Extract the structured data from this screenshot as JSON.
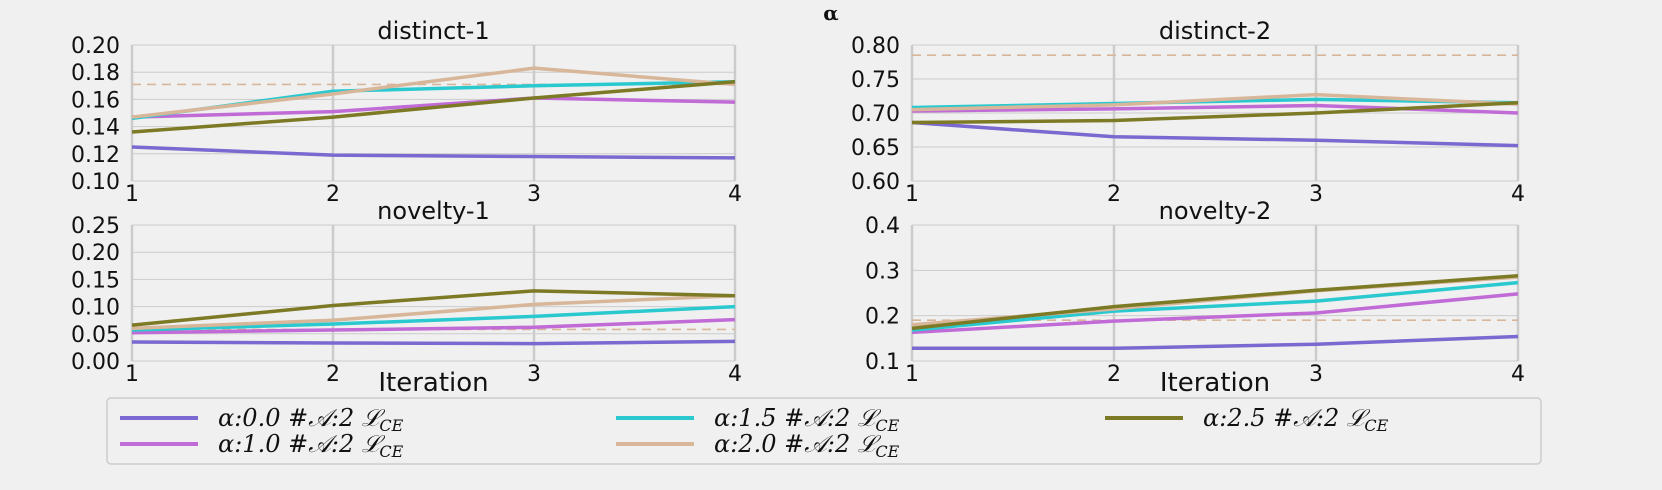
{
  "figure": {
    "suptitle": "α",
    "colors": {
      "background": "#f0f0f0",
      "grid": "#cbcbcb"
    }
  },
  "legend": {
    "placement": "bottom",
    "entries": [
      {
        "label": "α:0.0 #𝒜:2 ℒ",
        "sub": "CE",
        "color": "#7b68d0"
      },
      {
        "label": "α:1.0 #𝒜:2 ℒ",
        "sub": "CE",
        "color": "#c06bd6"
      },
      {
        "label": "α:1.5 #𝒜:2 ℒ",
        "sub": "CE",
        "color": "#29c9cf"
      },
      {
        "label": "α:2.0 #𝒜:2 ℒ",
        "sub": "CE",
        "color": "#d7b69a"
      },
      {
        "label": "α:2.5 #𝒜:2 ℒ",
        "sub": "CE",
        "color": "#7d7a25"
      }
    ]
  },
  "chart_data": [
    {
      "type": "line",
      "title": "distinct-1",
      "xlabel": "",
      "x": [
        1,
        2,
        3,
        4
      ],
      "xticks": [
        "1",
        "2",
        "3",
        "4"
      ],
      "ylim": [
        0.1,
        0.2
      ],
      "yticks": [
        "0.10",
        "0.12",
        "0.14",
        "0.16",
        "0.18",
        "0.20"
      ],
      "grid": true,
      "baseline": 0.171,
      "series": [
        {
          "name": "α:0.0 #𝒜:2 ℒCE",
          "values": [
            0.125,
            0.119,
            0.118,
            0.117
          ]
        },
        {
          "name": "α:1.0 #𝒜:2 ℒCE",
          "values": [
            0.147,
            0.151,
            0.161,
            0.158
          ]
        },
        {
          "name": "α:1.5 #𝒜:2 ℒCE",
          "values": [
            0.146,
            0.166,
            0.17,
            0.173
          ]
        },
        {
          "name": "α:2.0 #𝒜:2 ℒCE",
          "values": [
            0.147,
            0.164,
            0.183,
            0.171
          ]
        },
        {
          "name": "α:2.5 #𝒜:2 ℒCE",
          "values": [
            0.136,
            0.147,
            0.161,
            0.173
          ]
        }
      ]
    },
    {
      "type": "line",
      "title": "distinct-2",
      "xlabel": "",
      "x": [
        1,
        2,
        3,
        4
      ],
      "xticks": [
        "1",
        "2",
        "3",
        "4"
      ],
      "ylim": [
        0.6,
        0.8
      ],
      "yticks": [
        "0.60",
        "0.65",
        "0.70",
        "0.75",
        "0.80"
      ],
      "grid": true,
      "baseline": 0.785,
      "series": [
        {
          "name": "α:0.0 #𝒜:2 ℒCE",
          "values": [
            0.686,
            0.665,
            0.66,
            0.652
          ]
        },
        {
          "name": "α:1.0 #𝒜:2 ℒCE",
          "values": [
            0.703,
            0.706,
            0.711,
            0.7
          ]
        },
        {
          "name": "α:1.5 #𝒜:2 ℒCE",
          "values": [
            0.708,
            0.714,
            0.72,
            0.715
          ]
        },
        {
          "name": "α:2.0 #𝒜:2 ℒCE",
          "values": [
            0.705,
            0.712,
            0.727,
            0.713
          ]
        },
        {
          "name": "α:2.5 #𝒜:2 ℒCE",
          "values": [
            0.686,
            0.689,
            0.7,
            0.715
          ]
        }
      ]
    },
    {
      "type": "line",
      "title": "novelty-1",
      "xlabel": "Iteration",
      "x": [
        1,
        2,
        3,
        4
      ],
      "xticks": [
        "1",
        "2",
        "3",
        "4"
      ],
      "ylim": [
        0.0,
        0.25
      ],
      "yticks": [
        "0.00",
        "0.05",
        "0.10",
        "0.15",
        "0.20",
        "0.25"
      ],
      "grid": true,
      "baseline": 0.058,
      "series": [
        {
          "name": "α:0.0 #𝒜:2 ℒCE",
          "values": [
            0.035,
            0.033,
            0.032,
            0.036
          ]
        },
        {
          "name": "α:1.0 #𝒜:2 ℒCE",
          "values": [
            0.052,
            0.057,
            0.062,
            0.076
          ]
        },
        {
          "name": "α:1.5 #𝒜:2 ℒCE",
          "values": [
            0.057,
            0.068,
            0.082,
            0.1
          ]
        },
        {
          "name": "α:2.0 #𝒜:2 ℒCE",
          "values": [
            0.06,
            0.075,
            0.104,
            0.12
          ]
        },
        {
          "name": "α:2.5 #𝒜:2 ℒCE",
          "values": [
            0.066,
            0.102,
            0.129,
            0.12
          ]
        }
      ]
    },
    {
      "type": "line",
      "title": "novelty-2",
      "xlabel": "Iteration",
      "x": [
        1,
        2,
        3,
        4
      ],
      "xticks": [
        "1",
        "2",
        "3",
        "4"
      ],
      "ylim": [
        0.1,
        0.4
      ],
      "yticks": [
        "0.1",
        "0.2",
        "0.3",
        "0.4"
      ],
      "grid": true,
      "baseline": 0.19,
      "series": [
        {
          "name": "α:0.0 #𝒜:2 ℒCE",
          "values": [
            0.128,
            0.128,
            0.137,
            0.154
          ]
        },
        {
          "name": "α:1.0 #𝒜:2 ℒCE",
          "values": [
            0.163,
            0.188,
            0.206,
            0.248
          ]
        },
        {
          "name": "α:1.5 #𝒜:2 ℒCE",
          "values": [
            0.168,
            0.21,
            0.232,
            0.273
          ]
        },
        {
          "name": "α:2.0 #𝒜:2 ℒCE",
          "values": [
            0.18,
            0.215,
            0.255,
            0.285
          ]
        },
        {
          "name": "α:2.5 #𝒜:2 ℒCE",
          "values": [
            0.172,
            0.22,
            0.256,
            0.288
          ]
        }
      ]
    }
  ]
}
